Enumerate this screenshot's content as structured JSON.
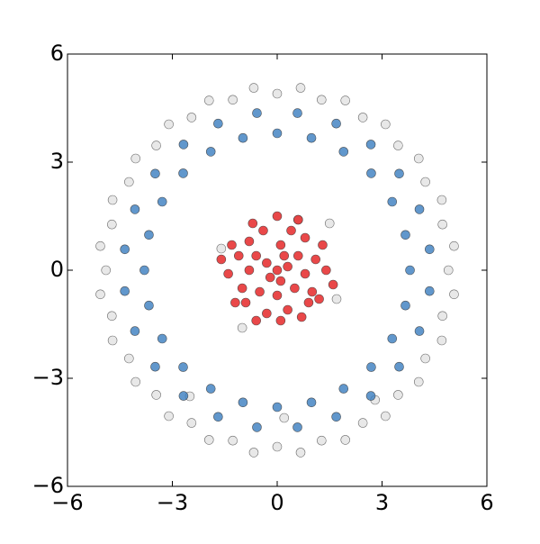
{
  "chart_data": {
    "type": "scatter",
    "xlim": [
      -6,
      6
    ],
    "ylim": [
      -6,
      6
    ],
    "xticks": [
      {
        "value": -6,
        "label": "−6"
      },
      {
        "value": -3,
        "label": "−3"
      },
      0,
      3,
      6
    ],
    "yticks": [
      {
        "value": -6,
        "label": "−6"
      },
      {
        "value": -3,
        "label": "−3"
      },
      0,
      3,
      6
    ],
    "series": [
      {
        "color": "#d9d9d9",
        "x": [
          4.9,
          4.73,
          4.24,
          3.46,
          2.45,
          1.27,
          0,
          -1.27,
          -2.45,
          -3.46,
          -4.24,
          -4.73,
          -4.9,
          -4.73,
          -4.24,
          -3.46,
          -2.45,
          -1.27,
          0,
          1.27,
          2.45,
          3.46,
          4.24,
          4.73,
          5.06,
          4.71,
          4.05,
          3.1,
          1.95,
          0.67,
          -0.67,
          -1.95,
          -3.1,
          -4.05,
          -4.71,
          -5.06,
          -5.06,
          -4.71,
          -4.05,
          -3.1,
          -1.95,
          -0.67,
          0.67,
          1.95,
          3.1,
          4.05,
          4.71,
          5.06,
          -1.6,
          1.5,
          0.6,
          -1.0,
          1.7,
          -2.5,
          2.8,
          0.2
        ],
        "y": [
          0,
          1.27,
          2.45,
          3.46,
          4.24,
          4.73,
          4.9,
          4.73,
          4.24,
          3.46,
          2.45,
          1.27,
          0,
          -1.27,
          -2.45,
          -3.46,
          -4.24,
          -4.73,
          -4.9,
          -4.73,
          -4.24,
          -3.46,
          -2.45,
          -1.27,
          0.67,
          1.95,
          3.1,
          4.05,
          4.71,
          5.06,
          5.06,
          4.71,
          4.05,
          3.1,
          1.95,
          0.67,
          -0.67,
          -1.95,
          -3.1,
          -4.05,
          -4.71,
          -5.06,
          -5.06,
          -4.71,
          -4.05,
          -3.1,
          -1.95,
          -0.67,
          0.6,
          1.3,
          1.4,
          -1.6,
          -0.8,
          -3.5,
          -3.6,
          -4.1
        ]
      },
      {
        "color": "#3a7dbf",
        "x": [
          3.8,
          3.67,
          3.29,
          2.69,
          1.9,
          0.98,
          0,
          -0.98,
          -1.9,
          -2.69,
          -3.29,
          -3.67,
          -3.8,
          -3.67,
          -3.29,
          -2.69,
          -1.9,
          -0.98,
          0,
          0.98,
          1.9,
          2.69,
          3.29,
          3.67,
          4.36,
          4.07,
          3.49,
          2.68,
          1.69,
          0.58,
          -0.58,
          -1.69,
          -2.68,
          -3.49,
          -4.07,
          -4.36,
          -4.36,
          -4.07,
          -3.49,
          -2.68,
          -1.69,
          -0.58,
          0.58,
          1.69,
          2.68,
          3.49,
          4.07,
          4.36
        ],
        "y": [
          0,
          0.98,
          1.9,
          2.69,
          3.29,
          3.67,
          3.8,
          3.67,
          3.29,
          2.69,
          1.9,
          0.98,
          0,
          -0.98,
          -1.9,
          -2.69,
          -3.29,
          -3.67,
          -3.8,
          -3.67,
          -3.29,
          -2.69,
          -1.9,
          -0.98,
          0.58,
          1.69,
          2.68,
          3.49,
          4.07,
          4.36,
          4.36,
          4.07,
          3.49,
          2.68,
          1.69,
          0.58,
          -0.58,
          -1.69,
          -2.68,
          -3.49,
          -4.07,
          -4.36,
          -4.36,
          -4.07,
          -3.49,
          -2.68,
          -1.69,
          -0.58
        ]
      },
      {
        "color": "#e41a1c",
        "x": [
          0,
          0.3,
          -0.3,
          0.1,
          -0.2,
          0.6,
          -0.6,
          0.5,
          -0.5,
          0.1,
          0,
          0.8,
          -0.8,
          1.1,
          -1.1,
          1.0,
          -1.0,
          0.4,
          -0.4,
          0.3,
          -0.3,
          0.8,
          -0.8,
          0.9,
          -0.9,
          1.4,
          -1.4,
          0,
          0.1,
          1.3,
          -1.3,
          1.2,
          -1.2,
          0.6,
          -0.7,
          0.7,
          -0.6,
          1.6,
          -1.6,
          0.2
        ],
        "y": [
          0,
          0.1,
          0.2,
          -0.3,
          -0.2,
          0.4,
          0.4,
          -0.5,
          -0.6,
          0.7,
          -0.7,
          -0.1,
          0,
          0.3,
          0.4,
          -0.6,
          -0.5,
          1.1,
          1.1,
          -1.1,
          -1.2,
          0.9,
          0.8,
          -0.9,
          -0.9,
          0,
          -0.1,
          1.5,
          -1.4,
          0.7,
          0.7,
          -0.8,
          -0.9,
          1.4,
          1.3,
          -1.3,
          -1.4,
          -0.4,
          0.3,
          0.4
        ]
      }
    ]
  }
}
